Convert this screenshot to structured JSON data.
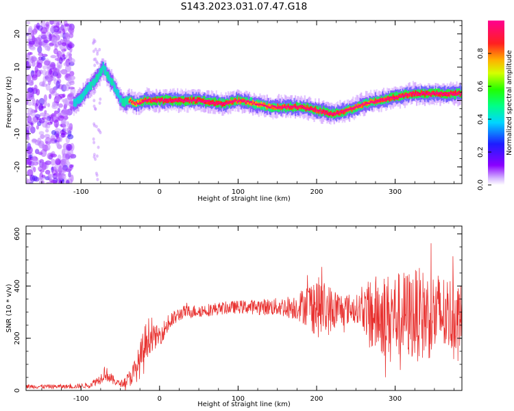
{
  "title": "S143.2023.031.07.47.G18",
  "chart_data": [
    {
      "type": "heatmap",
      "xlabel": "Height of straight line (km)",
      "ylabel": "Frequency (Hz)",
      "xlim": [
        -170,
        385
      ],
      "ylim": [
        -25,
        24
      ],
      "xticks": [
        "-100",
        "0",
        "100",
        "200",
        "300"
      ],
      "xtick_values": [
        -100,
        0,
        100,
        200,
        300
      ],
      "yticks": [
        "-20",
        "-10",
        "0",
        "10",
        "20"
      ],
      "ytick_values": [
        -20,
        -10,
        0,
        10,
        20
      ],
      "colorbar": {
        "label": "Normalized spectral amplitude",
        "range": [
          0,
          1
        ],
        "ticks": [
          "0.0",
          "0.2",
          "0.4",
          "0.6",
          "0.8"
        ],
        "tick_values": [
          0,
          0.2,
          0.4,
          0.6,
          0.8
        ],
        "colormap": "gist_rainbow (violet to red)"
      },
      "ridge": {
        "x": [
          -110,
          -100,
          -90,
          -80,
          -72,
          -66,
          -60,
          -52,
          -45,
          -40,
          -30,
          -20,
          0,
          50,
          80,
          100,
          120,
          140,
          160,
          180,
          200,
          220,
          240,
          260,
          280,
          300,
          320,
          340,
          360,
          385
        ],
        "frequency": [
          -1,
          1,
          4,
          7,
          10,
          7,
          5,
          1,
          -1,
          0,
          -1,
          0,
          0,
          0,
          -1,
          0,
          -1,
          -2,
          -2,
          -2,
          -3,
          -4,
          -3,
          -1,
          0,
          1,
          2,
          2,
          2,
          2
        ],
        "amplitude": [
          0.35,
          0.4,
          0.45,
          0.5,
          0.45,
          0.5,
          0.45,
          0.4,
          0.55,
          0.6,
          0.7,
          0.85,
          0.9,
          0.95,
          0.9,
          0.8,
          0.7,
          0.75,
          0.85,
          0.9,
          0.85,
          0.9,
          0.8,
          0.75,
          0.85,
          0.9,
          0.9,
          0.95,
          0.95,
          0.9
        ]
      },
      "noise_region": {
        "x": [
          -170,
          -110
        ],
        "description_level": "low amplitude scattered"
      }
    },
    {
      "type": "line",
      "xlabel": "Height of straight line (km)",
      "ylabel": "SNR (10 * v/v)",
      "xlim": [
        -170,
        385
      ],
      "ylim": [
        0,
        630
      ],
      "xticks": [
        "-100",
        "0",
        "100",
        "200",
        "300"
      ],
      "xtick_values": [
        -100,
        0,
        100,
        200,
        300
      ],
      "yticks": [
        "0",
        "200",
        "400",
        "600"
      ],
      "ytick_values": [
        0,
        200,
        400,
        600
      ],
      "color": "#e8312f",
      "envelope": {
        "x": [
          -170,
          -110,
          -90,
          -75,
          -70,
          -60,
          -50,
          -40,
          -30,
          -20,
          -15,
          -10,
          0,
          10,
          20,
          30,
          50,
          80,
          100,
          150,
          175,
          190,
          200,
          215,
          230,
          250,
          260,
          270,
          290,
          310,
          330,
          350,
          370,
          385
        ],
        "mean": [
          15,
          15,
          20,
          45,
          70,
          40,
          25,
          40,
          80,
          150,
          210,
          200,
          210,
          250,
          280,
          300,
          305,
          315,
          320,
          320,
          320,
          330,
          320,
          310,
          310,
          315,
          310,
          290,
          290,
          290,
          290,
          290,
          290,
          290
        ],
        "spread": [
          8,
          8,
          10,
          20,
          30,
          20,
          10,
          30,
          50,
          90,
          80,
          50,
          40,
          35,
          30,
          25,
          25,
          25,
          25,
          35,
          50,
          90,
          120,
          100,
          70,
          50,
          80,
          150,
          160,
          170,
          180,
          170,
          150,
          120
        ]
      }
    }
  ]
}
